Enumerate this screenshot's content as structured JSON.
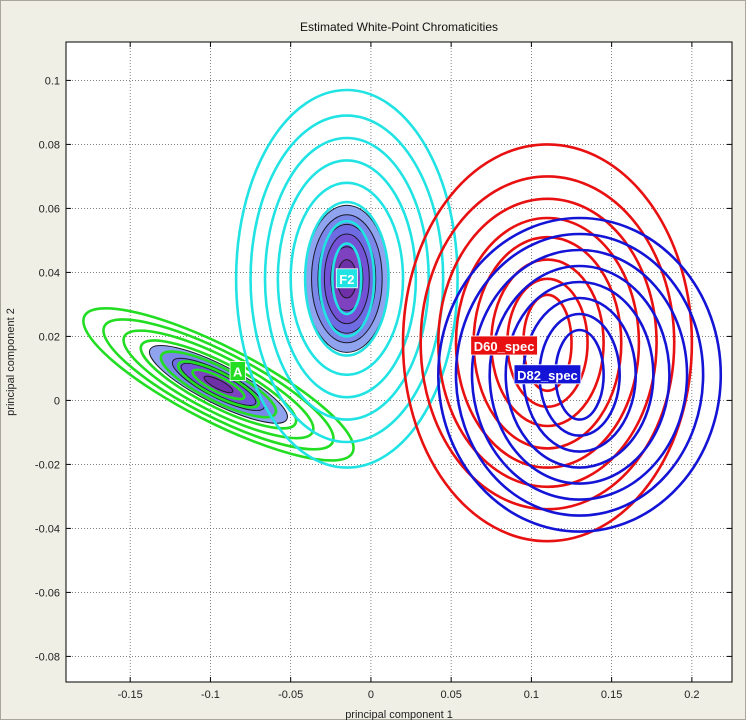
{
  "chart_data": {
    "type": "contour",
    "title": "Estimated White-Point Chromaticities",
    "xlabel": "principal component 1",
    "ylabel": "principal component 2",
    "xlim": [
      -0.19,
      0.225
    ],
    "ylim": [
      -0.088,
      0.112
    ],
    "xticks": [
      -0.15,
      -0.1,
      -0.05,
      0,
      0.05,
      0.1,
      0.15,
      0.2
    ],
    "yticks": [
      -0.08,
      -0.06,
      -0.04,
      -0.02,
      0,
      0.02,
      0.04,
      0.06,
      0.08,
      0.1
    ],
    "xtick_labels": [
      "-0.15",
      "-0.1",
      "-0.05",
      "0",
      "0.05",
      "0.1",
      "0.15",
      "0.2"
    ],
    "ytick_labels": [
      "-0.08",
      "-0.06",
      "-0.04",
      "-0.02",
      "0",
      "0.02",
      "0.04",
      "0.06",
      "0.08",
      "0.1"
    ],
    "grid": true,
    "series": [
      {
        "name": "A",
        "color": "#22dd22",
        "center": [
          -0.095,
          0.005
        ],
        "label_at": [
          -0.083,
          0.009
        ],
        "ring_radii": [
          [
            0.01,
            0.009
          ],
          [
            0.016,
            0.014
          ],
          [
            0.023,
            0.02
          ],
          [
            0.03,
            0.027
          ],
          [
            0.037,
            0.033
          ],
          [
            0.044,
            0.04
          ],
          [
            0.051,
            0.047
          ]
        ],
        "filled_radii": [
          [
            0.006,
            0.005
          ],
          [
            0.01,
            0.009
          ],
          [
            0.014,
            0.013
          ],
          [
            0.018,
            0.016
          ],
          [
            0.022,
            0.02
          ],
          [
            0.026,
            0.024
          ]
        ],
        "tilt_deg": -63,
        "scale": [
          0.46,
          1
        ]
      },
      {
        "name": "F2",
        "color": "#22e3e3",
        "center": [
          -0.015,
          0.038
        ],
        "label_at": [
          -0.015,
          0.038
        ],
        "ring_radii": [
          [
            0.009,
            0.011
          ],
          [
            0.017,
            0.018
          ],
          [
            0.026,
            0.024
          ],
          [
            0.035,
            0.03
          ],
          [
            0.043,
            0.037
          ],
          [
            0.051,
            0.044
          ],
          [
            0.06,
            0.051
          ],
          [
            0.069,
            0.059
          ]
        ],
        "filled_radii": [
          [
            0.006,
            0.006
          ],
          [
            0.01,
            0.01
          ],
          [
            0.014,
            0.014
          ],
          [
            0.018,
            0.017
          ],
          [
            0.022,
            0.02
          ],
          [
            0.026,
            0.023
          ]
        ],
        "tilt_deg": 0,
        "scale": [
          1,
          1
        ]
      },
      {
        "name": "D60_spec",
        "color": "#e81010",
        "center": [
          0.11,
          0.018
        ],
        "label_at": [
          0.083,
          0.017
        ],
        "ring_radii": [
          [
            0.015,
            0.015
          ],
          [
            0.025,
            0.02
          ],
          [
            0.035,
            0.026
          ],
          [
            0.046,
            0.033
          ],
          [
            0.057,
            0.039
          ],
          [
            0.068,
            0.045
          ],
          [
            0.079,
            0.052
          ],
          [
            0.09,
            0.062
          ]
        ],
        "tilt_deg": 0,
        "scale": [
          1,
          1
        ]
      },
      {
        "name": "D82_spec",
        "color": "#1414d6",
        "center": [
          0.13,
          0.008
        ],
        "label_at": [
          0.11,
          0.008
        ],
        "ring_radii": [
          [
            0.015,
            0.014
          ],
          [
            0.025,
            0.019
          ],
          [
            0.035,
            0.024
          ],
          [
            0.046,
            0.029
          ],
          [
            0.056,
            0.034
          ],
          [
            0.067,
            0.039
          ],
          [
            0.077,
            0.044
          ],
          [
            0.088,
            0.049
          ]
        ],
        "tilt_deg": 0,
        "scale": [
          1,
          1
        ]
      }
    ],
    "fill_palette": [
      "#6f2fa6",
      "#7e41c0",
      "#7352d6",
      "#6f6be2",
      "#7a86e8",
      "#8fa3ef"
    ]
  }
}
